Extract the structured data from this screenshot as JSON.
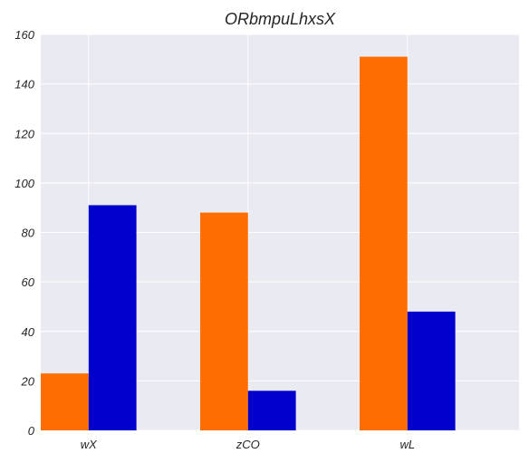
{
  "chart_data": {
    "type": "bar",
    "title": "ORbmpuLhxsX",
    "xlabel": "",
    "ylabel": "",
    "categories": [
      "wX",
      "zCO",
      "wL"
    ],
    "series": [
      {
        "values": [
          23,
          88,
          151
        ],
        "color": "#ff6e00"
      },
      {
        "values": [
          91,
          16,
          48
        ],
        "color": "#0000cc"
      }
    ],
    "ylim": [
      0,
      160
    ],
    "yticks": [
      0,
      20,
      40,
      60,
      80,
      100,
      120,
      140,
      160
    ],
    "grid": true,
    "legend": "none",
    "background": "#eaeaf2",
    "grid_color": "#ffffff"
  }
}
